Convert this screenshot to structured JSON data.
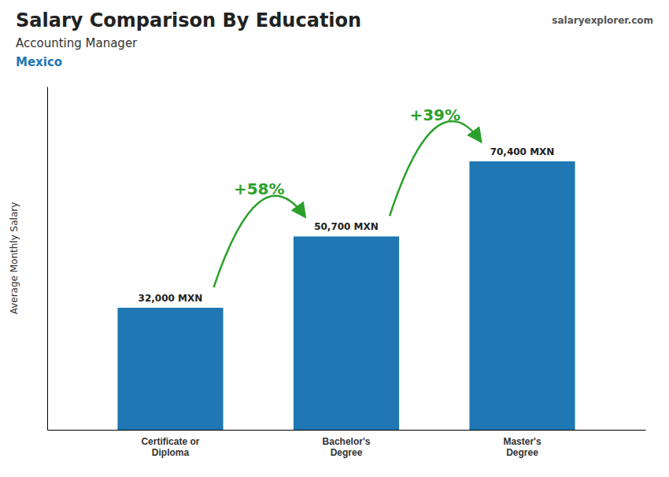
{
  "chart_data": {
    "type": "bar",
    "title": "Salary Comparison By Education",
    "subtitle": "Accounting Manager",
    "ylabel": "Average Monthly Salary",
    "categories": [
      "Certificate or\nDiploma",
      "Bachelor's\nDegree",
      "Master's\nDegree"
    ],
    "values": [
      32000,
      50700,
      70400
    ],
    "value_labels": [
      "32,000 MXN",
      "50,700 MXN",
      "70,400 MXN"
    ],
    "data_labels": true,
    "ylim": [
      0,
      90000
    ],
    "tick_labels": "x",
    "grid": false,
    "annotations": [
      {
        "text": "Mexico"
      },
      {
        "text": "salaryexplorer.com"
      },
      {
        "text": "+58%",
        "from": 0,
        "to": 1
      },
      {
        "text": "+39%",
        "from": 1,
        "to": 2
      }
    ]
  }
}
